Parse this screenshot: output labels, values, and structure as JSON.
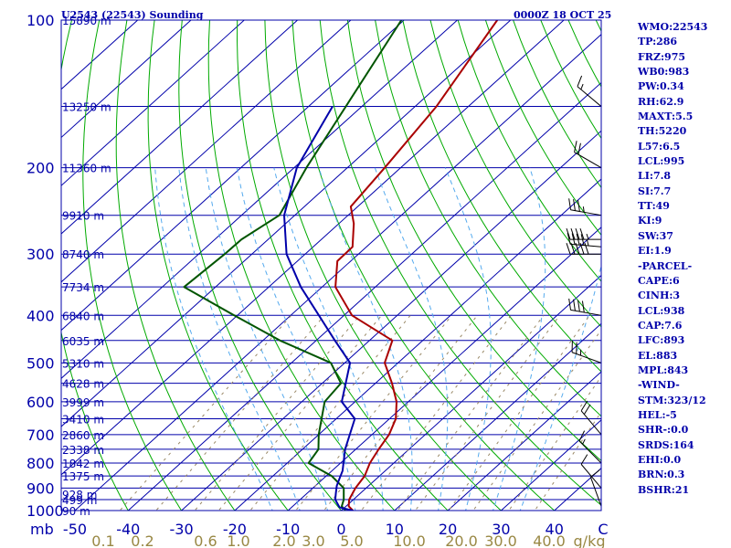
{
  "header": {
    "station_title": "U2543 (22543) Sounding",
    "time_title": "0000Z 18 OCT 25"
  },
  "colors": {
    "frame": "#0000aa",
    "isobar": "#0000aa",
    "isotherm": "#0000aa",
    "dry_adiabat": "#00aa00",
    "moist_adiabat": "#55aaee",
    "mixing_ratio": "#998866",
    "temperature": "#aa0000",
    "dewpoint": "#005500",
    "parcel": "#0000aa",
    "wind_barb": "#000000",
    "mixing_ratio_labels": "#998844",
    "index_text": "#0000aa"
  },
  "indices": [
    "WMO:22543",
    "TP:286",
    "FRZ:975",
    "WB0:983",
    "PW:0.34",
    "RH:62.9",
    "MAXT:5.5",
    "TH:5220",
    "L57:6.5",
    "LCL:995",
    "LI:7.8",
    "SI:7.7",
    "TT:49",
    "KI:9",
    "SW:37",
    "EI:1.9",
    "-PARCEL-",
    "CAPE:6",
    "CINH:3",
    "LCL:938",
    "CAP:7.6",
    "LFC:893",
    "EL:883",
    "MPL:843",
    "-WIND-",
    "STM:323/12",
    "HEL:-5",
    "SHR-:0.0",
    "SRDS:164",
    "EHI:0.0",
    "BRN:0.3",
    "BSHR:21"
  ],
  "chart_data": {
    "type": "line",
    "title": "",
    "xlabel": "C",
    "ylabel": "mb",
    "x_unit": "C",
    "y_unit": "mb",
    "y_scale": "log",
    "ylim": [
      1000,
      100
    ],
    "xlim_bottom": [
      -50,
      50
    ],
    "pressure_ticks": [
      1000,
      900,
      800,
      700,
      600,
      500,
      400,
      300,
      200,
      100
    ],
    "temperature_ticks": [
      -50,
      -40,
      -30,
      -20,
      -10,
      0,
      10,
      20,
      30,
      40
    ],
    "height_labels": [
      {
        "p": 1000,
        "label": "90 m"
      },
      {
        "p": 950,
        "label": "499 m"
      },
      {
        "p": 925,
        "label": "928 m"
      },
      {
        "p": 850,
        "label": "1375 m"
      },
      {
        "p": 800,
        "label": "1842 m"
      },
      {
        "p": 750,
        "label": "2338 m"
      },
      {
        "p": 700,
        "label": "2860 m"
      },
      {
        "p": 650,
        "label": "3410 m"
      },
      {
        "p": 600,
        "label": "3999 m"
      },
      {
        "p": 550,
        "label": "4628 m"
      },
      {
        "p": 500,
        "label": "5310 m"
      },
      {
        "p": 450,
        "label": "6035 m"
      },
      {
        "p": 400,
        "label": "6840 m"
      },
      {
        "p": 350,
        "label": "7734 m"
      },
      {
        "p": 300,
        "label": "8740 m"
      },
      {
        "p": 250,
        "label": "9910 m"
      },
      {
        "p": 200,
        "label": "11360 m"
      },
      {
        "p": 150,
        "label": "13250 m"
      },
      {
        "p": 100,
        "label": "15890 m"
      }
    ],
    "mixing_ratio_labels": [
      "0.1",
      "0.2",
      "0.6",
      "1.0",
      "2.0",
      "3.0",
      "5.0",
      "10.0",
      "20.0",
      "30.0",
      "40.0",
      "g/kg"
    ],
    "series": [
      {
        "name": "temperature",
        "x": [
          2.2,
          0.5,
          -0.8,
          -2.0,
          -2.8,
          -4.5,
          -5.7,
          -6.8,
          -8.8,
          -12.2,
          -16.9,
          -22.5,
          -25.7,
          -38.5,
          -47.5,
          -52.5,
          -52.6,
          -57.2,
          -61.3,
          -63.0,
          -66.0,
          -72.5
        ],
        "y": [
          1000,
          980,
          950,
          900,
          850,
          800,
          750,
          700,
          650,
          600,
          550,
          500,
          450,
          400,
          350,
          310,
          290,
          260,
          240,
          200,
          150,
          100
        ]
      },
      {
        "name": "dewpoint",
        "x": [
          0.8,
          -0.8,
          -1.8,
          -4.2,
          -9.0,
          -16.0,
          -17.0,
          -20.0,
          -25.7,
          -26.5,
          -32.6,
          -46.8,
          -60.6,
          -75.9,
          -75.1,
          -75.0,
          -72.9,
          -77.7,
          -90.5
        ],
        "y": [
          1000,
          980,
          950,
          900,
          850,
          800,
          750,
          700,
          600,
          550,
          500,
          450,
          400,
          350,
          300,
          280,
          250,
          200,
          100
        ]
      },
      {
        "name": "parcel",
        "x": [
          2.2,
          -1.0,
          -3.4,
          -4.7,
          -6.0,
          -7.0,
          -8.0,
          -12.0,
          -16.5,
          -22.5,
          -29.0,
          -36.5,
          -44.7,
          -54.0,
          -63.5,
          -72.0,
          -79.5,
          -85.5
        ],
        "y": [
          1000,
          985,
          950,
          920,
          890,
          860,
          830,
          750,
          650,
          600,
          500,
          450,
          400,
          350,
          300,
          250,
          200,
          150
        ]
      }
    ],
    "wind_barbs": [
      {
        "p": 980,
        "dir": 340,
        "spd": 10
      },
      {
        "p": 900,
        "dir": 320,
        "spd": 10
      },
      {
        "p": 800,
        "dir": 315,
        "spd": 15
      },
      {
        "p": 700,
        "dir": 320,
        "spd": 20
      },
      {
        "p": 500,
        "dir": 290,
        "spd": 25
      },
      {
        "p": 400,
        "dir": 280,
        "spd": 40
      },
      {
        "p": 300,
        "dir": 270,
        "spd": 50
      },
      {
        "p": 290,
        "dir": 275,
        "spd": 45
      },
      {
        "p": 280,
        "dir": 270,
        "spd": 45
      },
      {
        "p": 250,
        "dir": 280,
        "spd": 35
      },
      {
        "p": 200,
        "dir": 300,
        "spd": 20
      },
      {
        "p": 150,
        "dir": 310,
        "spd": 15
      }
    ]
  }
}
